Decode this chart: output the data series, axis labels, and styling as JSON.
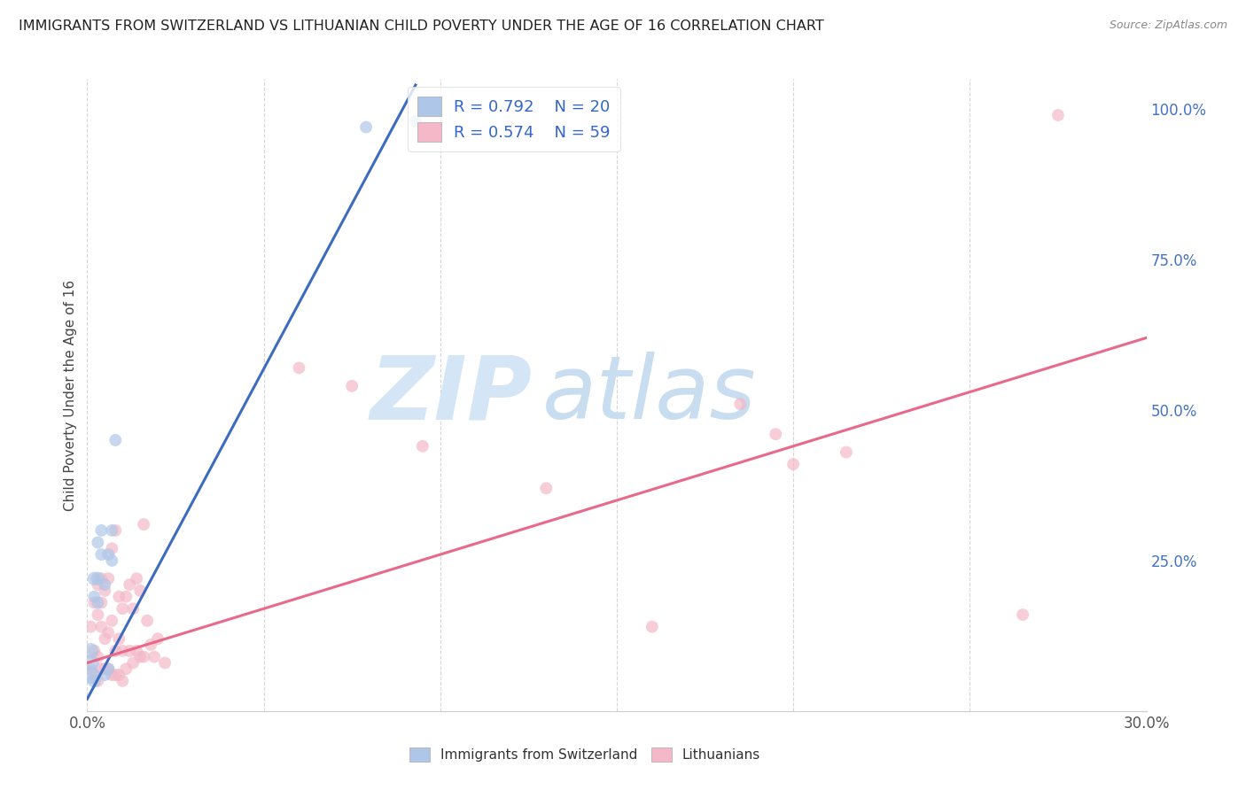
{
  "title": "IMMIGRANTS FROM SWITZERLAND VS LITHUANIAN CHILD POVERTY UNDER THE AGE OF 16 CORRELATION CHART",
  "source": "Source: ZipAtlas.com",
  "ylabel": "Child Poverty Under the Age of 16",
  "xlim": [
    0.0,
    0.3
  ],
  "ylim": [
    0.0,
    1.05
  ],
  "x_ticks": [
    0.0,
    0.05,
    0.1,
    0.15,
    0.2,
    0.25,
    0.3
  ],
  "x_tick_labels": [
    "0.0%",
    "",
    "",
    "",
    "",
    "",
    "30.0%"
  ],
  "y_ticks_right": [
    0.0,
    0.25,
    0.5,
    0.75,
    1.0
  ],
  "y_tick_labels_right": [
    "",
    "25.0%",
    "50.0%",
    "75.0%",
    "100.0%"
  ],
  "legend_r1": "R = 0.792",
  "legend_n1": "N = 20",
  "legend_r2": "R = 0.574",
  "legend_n2": "N = 59",
  "color_swiss": "#aec6e8",
  "color_lith": "#f4b8c8",
  "color_swiss_line": "#3d6bbf",
  "color_lith_line": "#e8698a",
  "watermark_zip": "ZIP",
  "watermark_atlas": "atlas",
  "swiss_scatter_x": [
    0.001,
    0.001,
    0.001,
    0.002,
    0.002,
    0.002,
    0.003,
    0.003,
    0.003,
    0.004,
    0.004,
    0.005,
    0.005,
    0.006,
    0.006,
    0.007,
    0.007,
    0.008,
    0.079,
    0.093
  ],
  "swiss_scatter_y": [
    0.06,
    0.08,
    0.1,
    0.05,
    0.19,
    0.22,
    0.18,
    0.22,
    0.28,
    0.26,
    0.3,
    0.06,
    0.21,
    0.07,
    0.26,
    0.25,
    0.3,
    0.45,
    0.97,
    0.98
  ],
  "swiss_scatter_sizes": [
    200,
    180,
    160,
    120,
    100,
    120,
    100,
    120,
    100,
    100,
    100,
    100,
    100,
    100,
    100,
    100,
    100,
    100,
    100,
    100
  ],
  "lith_scatter_x": [
    0.001,
    0.001,
    0.002,
    0.002,
    0.002,
    0.003,
    0.003,
    0.003,
    0.003,
    0.004,
    0.004,
    0.004,
    0.004,
    0.005,
    0.005,
    0.005,
    0.006,
    0.006,
    0.006,
    0.007,
    0.007,
    0.007,
    0.008,
    0.008,
    0.008,
    0.009,
    0.009,
    0.009,
    0.01,
    0.01,
    0.01,
    0.011,
    0.011,
    0.012,
    0.012,
    0.013,
    0.013,
    0.014,
    0.014,
    0.015,
    0.015,
    0.016,
    0.016,
    0.017,
    0.018,
    0.019,
    0.02,
    0.022,
    0.06,
    0.075,
    0.095,
    0.13,
    0.16,
    0.185,
    0.195,
    0.2,
    0.215,
    0.265,
    0.275
  ],
  "lith_scatter_y": [
    0.07,
    0.14,
    0.06,
    0.1,
    0.18,
    0.05,
    0.09,
    0.16,
    0.21,
    0.07,
    0.14,
    0.18,
    0.22,
    0.07,
    0.12,
    0.2,
    0.07,
    0.13,
    0.22,
    0.06,
    0.15,
    0.27,
    0.06,
    0.1,
    0.3,
    0.06,
    0.12,
    0.19,
    0.05,
    0.1,
    0.17,
    0.07,
    0.19,
    0.1,
    0.21,
    0.08,
    0.17,
    0.1,
    0.22,
    0.09,
    0.2,
    0.09,
    0.31,
    0.15,
    0.11,
    0.09,
    0.12,
    0.08,
    0.57,
    0.54,
    0.44,
    0.37,
    0.14,
    0.51,
    0.46,
    0.41,
    0.43,
    0.16,
    0.99
  ],
  "lith_scatter_sizes": [
    100,
    100,
    100,
    100,
    100,
    100,
    100,
    100,
    100,
    100,
    100,
    100,
    100,
    100,
    100,
    100,
    100,
    100,
    100,
    100,
    100,
    100,
    100,
    100,
    100,
    100,
    100,
    100,
    100,
    100,
    100,
    100,
    100,
    100,
    100,
    100,
    100,
    100,
    100,
    100,
    100,
    100,
    100,
    100,
    100,
    100,
    100,
    100,
    100,
    100,
    100,
    100,
    100,
    100,
    100,
    100,
    100,
    100,
    100
  ],
  "swiss_line_x0": 0.0,
  "swiss_line_y0": 0.02,
  "swiss_line_x1": 0.093,
  "swiss_line_y1": 1.04,
  "lith_line_x0": 0.0,
  "lith_line_y0": 0.08,
  "lith_line_x1": 0.3,
  "lith_line_y1": 0.62
}
